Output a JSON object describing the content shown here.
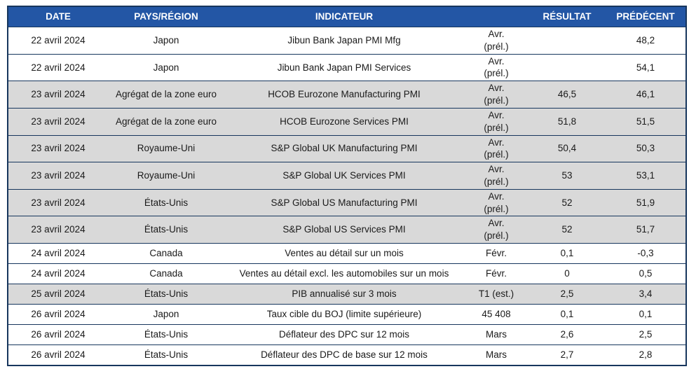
{
  "theme": {
    "header_background": "#2356a5",
    "header_text_color": "#ffffff",
    "border_color": "#17365d",
    "shaded_row_color": "#d9d9d9"
  },
  "table": {
    "headers": {
      "date": "DATE",
      "region": "PAYS/RÉGION",
      "indicator": "INDICATEUR",
      "period": "",
      "result": "RÉSULTAT",
      "previous": "PRÉDÉCENT"
    },
    "rows": [
      {
        "date": "22 avril 2024",
        "region": "Japon",
        "indicator": "Jibun Bank Japan PMI Mfg",
        "period": "Avr.\n(prél.)",
        "result": "",
        "previous": "48,2"
      },
      {
        "date": "22 avril 2024",
        "region": "Japon",
        "indicator": "Jibun Bank Japan PMI Services",
        "period": "Avr.\n(prél.)",
        "result": "",
        "previous": "54,1"
      },
      {
        "date": "23 avril 2024",
        "region": "Agrégat de la zone euro",
        "indicator": "HCOB Eurozone Manufacturing PMI",
        "period": "Avr.\n(prél.)",
        "result": "46,5",
        "previous": "46,1"
      },
      {
        "date": "23 avril 2024",
        "region": "Agrégat de la zone euro",
        "indicator": "HCOB Eurozone Services PMI",
        "period": "Avr.\n(prél.)",
        "result": "51,8",
        "previous": "51,5"
      },
      {
        "date": "23 avril 2024",
        "region": "Royaume-Uni",
        "indicator": "S&P Global UK Manufacturing PMI",
        "period": "Avr.\n(prél.)",
        "result": "50,4",
        "previous": "50,3"
      },
      {
        "date": "23 avril 2024",
        "region": "Royaume-Uni",
        "indicator": "S&P Global UK Services PMI",
        "period": "Avr.\n(prél.)",
        "result": "53",
        "previous": "53,1"
      },
      {
        "date": "23 avril 2024",
        "region": "États-Unis",
        "indicator": "S&P Global US Manufacturing PMI",
        "period": "Avr.\n(prél.)",
        "result": "52",
        "previous": "51,9"
      },
      {
        "date": "23 avril 2024",
        "region": "États-Unis",
        "indicator": "S&P Global US Services PMI",
        "period": "Avr.\n(prél.)",
        "result": "52",
        "previous": "51,7"
      },
      {
        "date": "24 avril 2024",
        "region": "Canada",
        "indicator": "Ventes au détail sur un mois",
        "period": "Févr.",
        "result": "0,1",
        "previous": "-0,3"
      },
      {
        "date": "24 avril 2024",
        "region": "Canada",
        "indicator": "Ventes au détail excl. les automobiles sur un mois",
        "period": "Févr.",
        "result": "0",
        "previous": "0,5"
      },
      {
        "date": "25 avril 2024",
        "region": "États-Unis",
        "indicator": "PIB annualisé sur 3 mois",
        "period": "T1 (est.)",
        "result": "2,5",
        "previous": "3,4"
      },
      {
        "date": "26 avril 2024",
        "region": "Japon",
        "indicator": "Taux cible du BOJ (limite supérieure)",
        "period": "45 408",
        "result": "0,1",
        "previous": "0,1"
      },
      {
        "date": "26 avril 2024",
        "region": "États-Unis",
        "indicator": "Déflateur des DPC sur 12 mois",
        "period": "Mars",
        "result": "2,6",
        "previous": "2,5"
      },
      {
        "date": "26 avril 2024",
        "region": "États-Unis",
        "indicator": "Déflateur des DPC de base sur 12 mois",
        "period": "Mars",
        "result": "2,7",
        "previous": "2,8"
      }
    ]
  }
}
